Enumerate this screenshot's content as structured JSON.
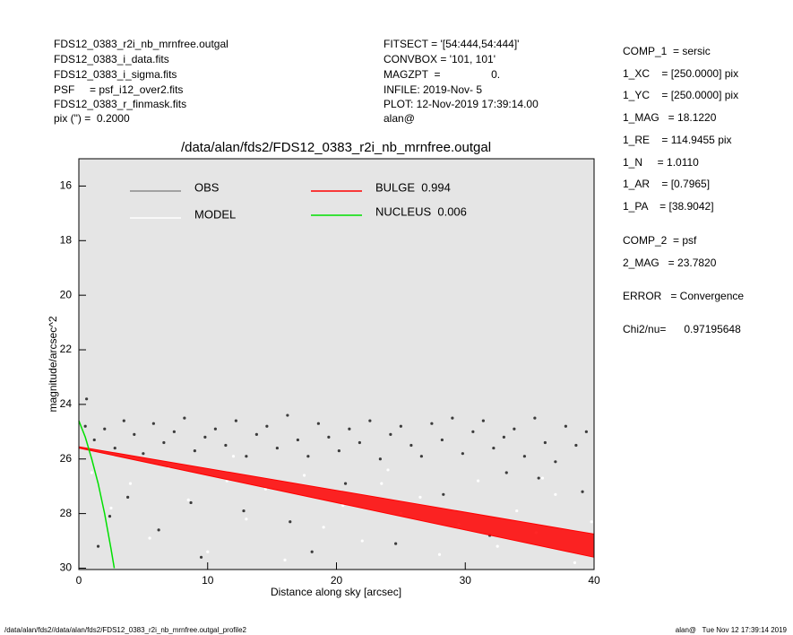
{
  "header": {
    "left": [
      "FDS12_0383_r2i_nb_mrnfree.outgal",
      "FDS12_0383_i_data.fits",
      "FDS12_0383_i_sigma.fits",
      "PSF     = psf_i12_over2.fits",
      "FDS12_0383_r_finmask.fits",
      "pix (\") =  0.2000"
    ],
    "middle": [
      "FITSECT = '[54:444,54:444]'",
      "CONVBOX = '101, 101'",
      "MAGZPT  =                 0.",
      "INFILE: 2019-Nov- 5",
      "PLOT: 12-Nov-2019 17:39:14.00",
      "alan@"
    ],
    "right": [
      "COMP_1  = sersic",
      "1_XC    = [250.0000] pix",
      "1_YC    = [250.0000] pix",
      "1_MAG   = 18.1220",
      "1_RE    = 114.9455 pix",
      "1_N     = 1.0110",
      "1_AR    = [0.7965]",
      "1_PA    = [38.9042]",
      "COMP_2  = psf",
      "2_MAG   = 23.7820",
      "ERROR   = Convergence",
      "Chi2/nu=      0.97195648"
    ]
  },
  "footer": {
    "left": "/data/alan/fds2//data/alan/fds2/FDS12_0383_r2i_nb_mrnfree.outgal_profile2",
    "right": "alan@   Tue Nov 12 17:39:14 2019"
  },
  "chart_data": {
    "type": "scatter",
    "title": "/data/alan/fds2/FDS12_0383_r2i_nb_mrnfree.outgal",
    "x_label": "Distance along sky [arcsec]",
    "y_label": "magnitude/arcsec^2",
    "xlim": [
      0,
      40
    ],
    "ylim": [
      30.05,
      15
    ],
    "xticks": [
      0,
      10,
      20,
      30,
      40
    ],
    "yticks": [
      16,
      18,
      20,
      22,
      24,
      26,
      28,
      30
    ],
    "background": "#e5e5e5",
    "series": [
      {
        "name": "OBS",
        "type": "scatter",
        "color": "#8c8c8c",
        "marker_color": "#3c3c3c",
        "x": [
          0.5,
          1.2,
          2,
          2.8,
          3.5,
          4.3,
          5,
          5.8,
          6.6,
          7.4,
          8.2,
          9,
          9.8,
          10.6,
          11.4,
          12.2,
          13,
          13.8,
          14.6,
          15.4,
          16.2,
          17,
          17.8,
          18.6,
          19.4,
          20.2,
          21,
          21.8,
          22.6,
          23.4,
          24.2,
          25,
          25.8,
          26.6,
          27.4,
          28.2,
          29,
          29.8,
          30.6,
          31.4,
          32.2,
          33,
          33.8,
          34.6,
          35.4,
          36.2,
          37,
          37.8,
          38.6,
          39.4,
          0.6,
          1.5,
          3.8,
          6.2,
          9.5,
          12.8,
          16.4,
          20.7,
          24.6,
          28.3,
          31.9,
          35.7,
          39.1,
          2.4,
          8.7,
          18.1,
          33.2
        ],
        "values": [
          24.8,
          25.3,
          24.9,
          25.6,
          24.6,
          25.1,
          25.8,
          24.7,
          25.4,
          25.0,
          24.5,
          25.7,
          25.2,
          24.9,
          25.5,
          24.6,
          25.9,
          25.1,
          24.8,
          25.6,
          24.4,
          25.3,
          25.9,
          24.7,
          25.2,
          25.7,
          24.9,
          25.4,
          24.6,
          26.0,
          25.1,
          24.8,
          25.5,
          25.9,
          24.7,
          25.3,
          24.5,
          25.8,
          25.0,
          24.6,
          25.6,
          25.2,
          24.9,
          25.9,
          24.5,
          25.4,
          26.1,
          24.8,
          25.5,
          25.0,
          23.8,
          29.2,
          27.4,
          28.6,
          29.6,
          27.9,
          28.3,
          26.9,
          29.1,
          27.3,
          28.8,
          26.7,
          27.2,
          28.1,
          27.6,
          29.4,
          26.5
        ]
      },
      {
        "name": "MODEL",
        "type": "scatter",
        "color": "#ffffff",
        "marker_color": "#ffffff",
        "x": [
          1,
          2.5,
          4,
          5.5,
          7,
          8.5,
          10,
          11.5,
          13,
          14.5,
          16,
          17.5,
          19,
          20.5,
          22,
          23.5,
          25,
          26.5,
          28,
          29.5,
          31,
          32.5,
          34,
          35.5,
          37,
          38.5,
          39.8,
          12,
          24,
          36
        ],
        "values": [
          26.5,
          27.8,
          26.9,
          28.9,
          26.3,
          27.5,
          29.4,
          26.8,
          28.2,
          27.1,
          29.7,
          26.6,
          28.5,
          27.7,
          29.0,
          26.9,
          28.0,
          27.4,
          29.5,
          28.4,
          26.8,
          29.2,
          27.9,
          28.7,
          27.3,
          29.8,
          28.3,
          25.9,
          26.4,
          26.7
        ]
      },
      {
        "name": "BULGE  0.994",
        "type": "band",
        "color": "#ff0000",
        "x": [
          0,
          40
        ],
        "values": [
          25.55,
          28.75
        ],
        "lower": [
          25.6,
          29.6
        ]
      },
      {
        "name": "NUCLEUS  0.006",
        "type": "line",
        "color": "#00e000",
        "x": [
          0,
          0.5,
          1,
          1.5,
          2,
          2.5,
          2.75
        ],
        "values": [
          24.6,
          25.2,
          26,
          26.9,
          28,
          29.3,
          30
        ]
      }
    ]
  }
}
